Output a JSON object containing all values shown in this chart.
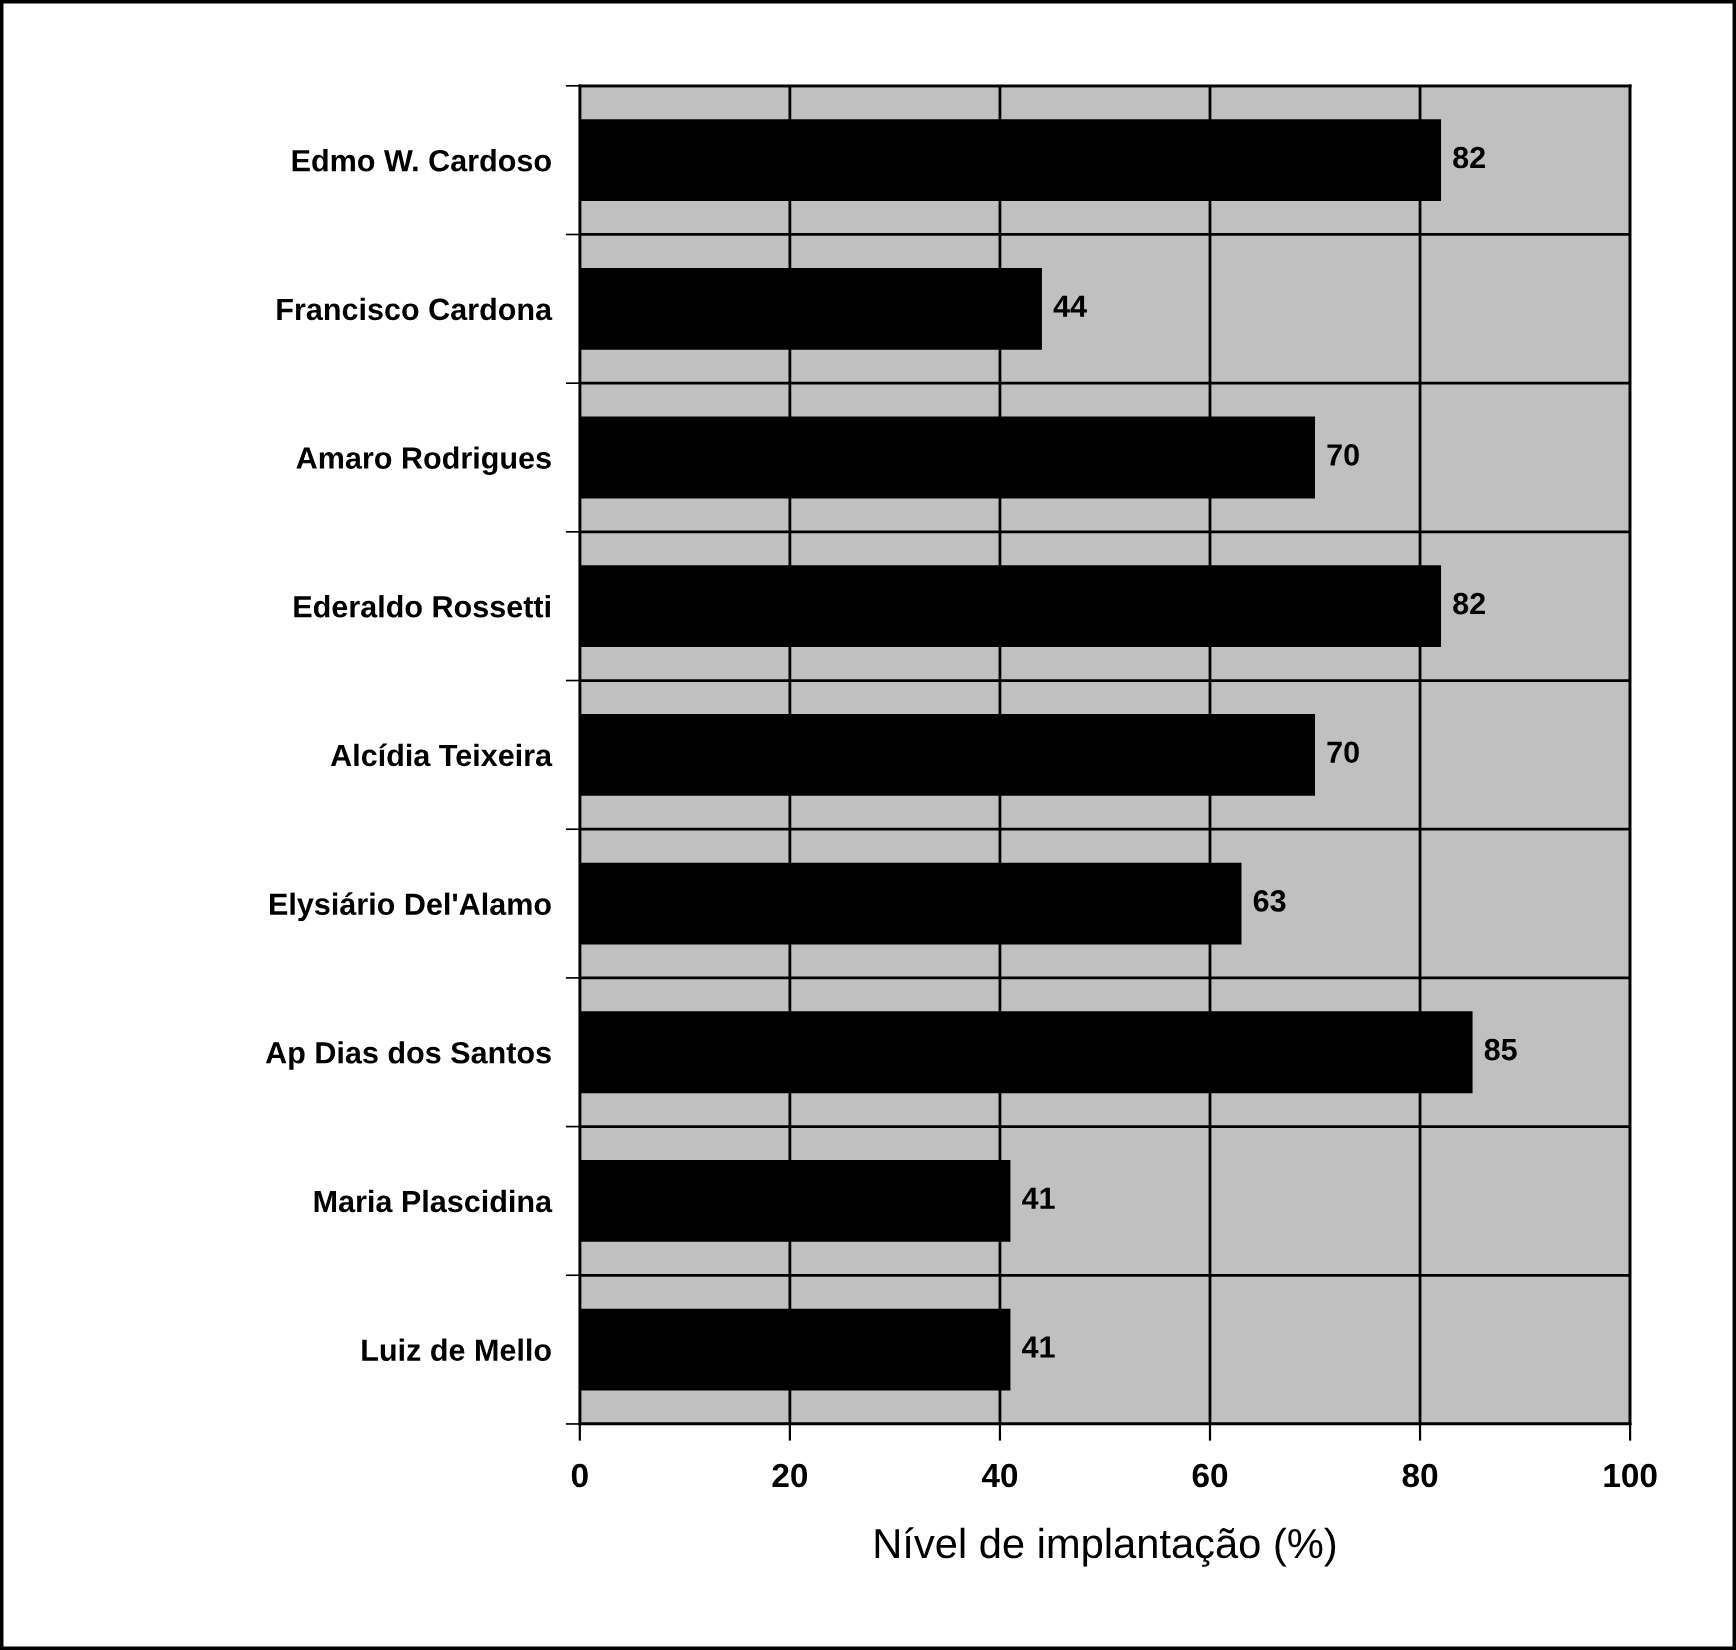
{
  "chart_data": {
    "type": "bar",
    "orientation": "horizontal",
    "xlabel": "Nível de implantação (%)",
    "categories": [
      "Edmo W. Cardoso",
      "Francisco Cardona",
      "Amaro Rodrigues",
      "Ederaldo Rossetti",
      "Alcídia Teixeira",
      "Elysiário Del'Alamo",
      "Ap Dias dos Santos",
      "Maria Plascidina",
      "Luiz de Mello"
    ],
    "values": [
      82,
      44,
      70,
      82,
      70,
      63,
      85,
      41,
      41
    ],
    "color": "#000000",
    "xlim": [
      0,
      100
    ],
    "xticks": [
      0,
      20,
      40,
      60,
      80,
      100
    ],
    "grid": true,
    "data_labels": true
  }
}
